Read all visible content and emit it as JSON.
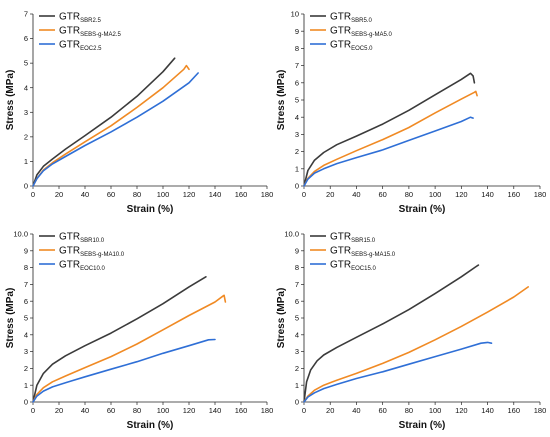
{
  "chart_data": [
    {
      "type": "line",
      "xlabel": "Strain (%)",
      "ylabel": "Stress (MPa)",
      "xlim": [
        0,
        180
      ],
      "ylim": [
        0,
        7
      ],
      "xticks": [
        "0",
        "20",
        "40",
        "60",
        "80",
        "100",
        "120",
        "140",
        "160",
        "180"
      ],
      "yticks": [
        "0",
        "1",
        "2",
        "3",
        "4",
        "5",
        "6",
        "7"
      ],
      "legend_position": "top-left",
      "series": [
        {
          "name": "GTR",
          "subscript": "SBR2.5",
          "color": "#3b3b3b",
          "x": [
            0,
            3,
            8,
            15,
            25,
            40,
            60,
            80,
            100,
            109
          ],
          "y": [
            0,
            0.45,
            0.8,
            1.1,
            1.5,
            2.05,
            2.8,
            3.65,
            4.65,
            5.2
          ]
        },
        {
          "name": "GTR",
          "subscript": "SEBS-g-MA2.5",
          "color": "#f08a24",
          "x": [
            0,
            3,
            8,
            15,
            25,
            40,
            60,
            80,
            100,
            116,
            118,
            120
          ],
          "y": [
            0,
            0.3,
            0.65,
            0.95,
            1.3,
            1.8,
            2.45,
            3.2,
            4.0,
            4.75,
            4.9,
            4.75
          ]
        },
        {
          "name": "GTR",
          "subscript": "EOC2.5",
          "color": "#2f6fd6",
          "x": [
            0,
            3,
            8,
            15,
            25,
            40,
            60,
            80,
            100,
            120,
            127
          ],
          "y": [
            0,
            0.3,
            0.62,
            0.9,
            1.2,
            1.65,
            2.2,
            2.8,
            3.45,
            4.2,
            4.6
          ]
        }
      ]
    },
    {
      "type": "line",
      "xlabel": "Strain (%)",
      "ylabel": "Stress (MPa)",
      "xlim": [
        0,
        180
      ],
      "ylim": [
        0,
        10
      ],
      "xticks": [
        "0",
        "20",
        "40",
        "60",
        "80",
        "100",
        "120",
        "140",
        "160",
        "180"
      ],
      "yticks": [
        "0",
        "1",
        "2",
        "3",
        "4",
        "5",
        "6",
        "7",
        "8",
        "9",
        "10"
      ],
      "legend_position": "top-left",
      "series": [
        {
          "name": "GTR",
          "subscript": "SBR5.0",
          "color": "#3b3b3b",
          "x": [
            0,
            3,
            8,
            15,
            25,
            40,
            60,
            80,
            100,
            120,
            127,
            129,
            130
          ],
          "y": [
            0,
            0.9,
            1.5,
            1.95,
            2.4,
            2.9,
            3.6,
            4.4,
            5.3,
            6.2,
            6.55,
            6.4,
            6.0
          ]
        },
        {
          "name": "GTR",
          "subscript": "SEBS-g-MA5.0",
          "color": "#f08a24",
          "x": [
            0,
            3,
            8,
            15,
            25,
            40,
            60,
            80,
            100,
            120,
            130,
            131,
            132
          ],
          "y": [
            0,
            0.45,
            0.85,
            1.2,
            1.55,
            2.05,
            2.7,
            3.4,
            4.25,
            5.05,
            5.45,
            5.5,
            5.25
          ]
        },
        {
          "name": "GTR",
          "subscript": "EOC5.0",
          "color": "#2f6fd6",
          "x": [
            0,
            3,
            8,
            15,
            25,
            40,
            60,
            80,
            100,
            120,
            127,
            129
          ],
          "y": [
            0,
            0.4,
            0.75,
            1.0,
            1.3,
            1.65,
            2.1,
            2.65,
            3.2,
            3.75,
            4.0,
            3.95
          ]
        }
      ]
    },
    {
      "type": "line",
      "xlabel": "Strain (%)",
      "ylabel": "Stress (MPa)",
      "xlim": [
        0,
        180
      ],
      "ylim": [
        0,
        10
      ],
      "yticks": [
        "0",
        "1",
        "2",
        "3",
        "4",
        "5",
        "6",
        "7",
        "8",
        "9",
        "10.0"
      ],
      "xticks": [
        "0",
        "20",
        "40",
        "60",
        "80",
        "100",
        "120",
        "140",
        "160",
        "180"
      ],
      "legend_position": "top-left",
      "series": [
        {
          "name": "GTR",
          "subscript": "SBR10.0",
          "color": "#3b3b3b",
          "x": [
            0,
            3,
            8,
            15,
            25,
            40,
            60,
            80,
            100,
            120,
            133
          ],
          "y": [
            0,
            1.0,
            1.7,
            2.25,
            2.75,
            3.35,
            4.1,
            4.95,
            5.85,
            6.85,
            7.45
          ]
        },
        {
          "name": "GTR",
          "subscript": "SEBS-g-MA10.0",
          "color": "#f08a24",
          "x": [
            0,
            3,
            8,
            15,
            25,
            40,
            60,
            80,
            100,
            120,
            140,
            146,
            147,
            148
          ],
          "y": [
            0,
            0.45,
            0.85,
            1.2,
            1.55,
            2.05,
            2.7,
            3.45,
            4.3,
            5.15,
            5.95,
            6.3,
            6.35,
            5.95
          ]
        },
        {
          "name": "GTR",
          "subscript": "EOC10.0",
          "color": "#2f6fd6",
          "x": [
            0,
            3,
            8,
            15,
            25,
            40,
            60,
            80,
            100,
            120,
            135,
            140
          ],
          "y": [
            0,
            0.35,
            0.65,
            0.9,
            1.15,
            1.5,
            1.95,
            2.4,
            2.9,
            3.35,
            3.7,
            3.72
          ]
        }
      ]
    },
    {
      "type": "line",
      "xlabel": "Strain (%)",
      "ylabel": "Stress (MPa)",
      "xlim": [
        0,
        180
      ],
      "ylim": [
        0,
        10
      ],
      "yticks": [
        "0",
        "1",
        "2",
        "3",
        "4",
        "5",
        "6",
        "7",
        "8",
        "9",
        "10.0"
      ],
      "xticks": [
        "0",
        "20",
        "40",
        "60",
        "80",
        "100",
        "120",
        "140",
        "160",
        "180"
      ],
      "legend_position": "top-left",
      "series": [
        {
          "name": "GTR",
          "subscript": "SBR15.0",
          "color": "#3b3b3b",
          "x": [
            0,
            2,
            5,
            10,
            15,
            25,
            40,
            60,
            80,
            100,
            120,
            132,
            133
          ],
          "y": [
            0,
            1.2,
            1.9,
            2.45,
            2.8,
            3.25,
            3.85,
            4.65,
            5.5,
            6.45,
            7.45,
            8.1,
            8.15
          ]
        },
        {
          "name": "GTR",
          "subscript": "SEBS-g-MA15.0",
          "color": "#f08a24",
          "x": [
            0,
            3,
            8,
            15,
            25,
            40,
            60,
            80,
            100,
            120,
            140,
            160,
            171
          ],
          "y": [
            0,
            0.35,
            0.7,
            1.0,
            1.3,
            1.7,
            2.3,
            2.95,
            3.7,
            4.5,
            5.35,
            6.25,
            6.85
          ]
        },
        {
          "name": "GTR",
          "subscript": "EOC15.0",
          "color": "#2f6fd6",
          "x": [
            0,
            3,
            8,
            15,
            25,
            40,
            60,
            80,
            100,
            120,
            135,
            140,
            143
          ],
          "y": [
            0,
            0.3,
            0.55,
            0.8,
            1.05,
            1.4,
            1.8,
            2.25,
            2.7,
            3.15,
            3.5,
            3.55,
            3.5
          ]
        }
      ]
    }
  ]
}
